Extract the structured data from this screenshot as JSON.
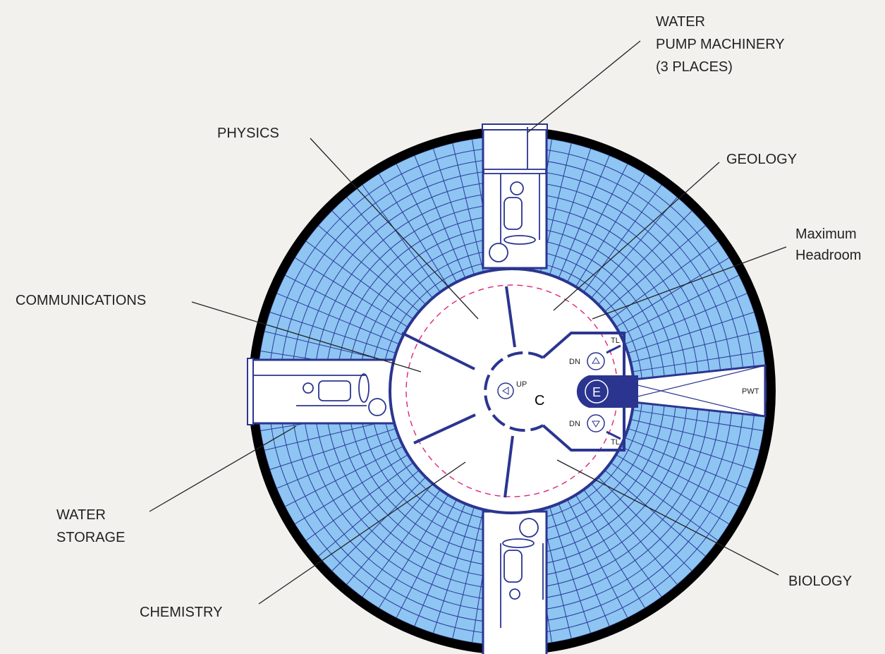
{
  "callouts": {
    "water_pump": [
      "WATER",
      "PUMP MACHINERY",
      "(3 PLACES)"
    ],
    "physics": "PHYSICS",
    "geology": "GEOLOGY",
    "headroom": [
      "Maximum",
      "Headroom"
    ],
    "communications": "COMMUNICATIONS",
    "water_storage": [
      "WATER",
      "STORAGE"
    ],
    "chemistry": "CHEMISTRY",
    "biology": "BIOLOGY"
  },
  "interior": {
    "up": "UP",
    "core": "C",
    "elevator": "E",
    "down": [
      "DN",
      "DN"
    ],
    "toilet": [
      "TL",
      "TL"
    ],
    "pwt": "PWT"
  }
}
